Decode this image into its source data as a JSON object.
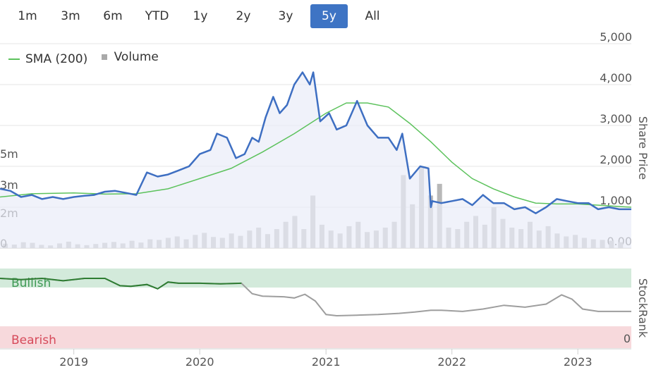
{
  "range_selector": {
    "options": [
      "1m",
      "3m",
      "6m",
      "YTD",
      "1y",
      "2y",
      "3y",
      "5y",
      "All"
    ],
    "selected": "5y"
  },
  "legend": {
    "sma_label": "SMA (200)",
    "volume_label": "Volume"
  },
  "colors": {
    "price": "#3e6fc2",
    "price_fill": "#e9edf8",
    "sma": "#5cc25c",
    "volume": "#b8b8b8",
    "stockrank_bullish": "#2e7d32",
    "stockrank_neutral": "#9e9e9e",
    "bullish_band": "#d3eadb",
    "bearish_band": "#f7d9dc",
    "bullish_text": "#3f9a55",
    "bearish_text": "#d64a5a",
    "active_button": "#3e74c4"
  },
  "chart_data": [
    {
      "type": "line",
      "ylabel": "Share Price",
      "ylim": [
        0,
        5000
      ],
      "y_ticks": [
        "5,000",
        "4,000",
        "3,000",
        "2,000",
        "1,000",
        "0.00"
      ],
      "x_ticks": [
        "2019",
        "2020",
        "2021",
        "2022",
        "2023"
      ],
      "xlim": [
        "2018-06-01",
        "2023-06-05"
      ],
      "series": [
        {
          "name": "Price",
          "dates": [
            "2018-06-01",
            "2018-07-01",
            "2018-08-01",
            "2018-09-01",
            "2018-10-01",
            "2018-11-01",
            "2018-12-01",
            "2019-01-01",
            "2019-02-01",
            "2019-03-01",
            "2019-04-01",
            "2019-05-01",
            "2019-06-01",
            "2019-07-01",
            "2019-08-01",
            "2019-09-01",
            "2019-10-01",
            "2019-11-01",
            "2019-12-01",
            "2020-01-01",
            "2020-02-01",
            "2020-02-20",
            "2020-03-20",
            "2020-04-15",
            "2020-05-10",
            "2020-06-01",
            "2020-06-20",
            "2020-07-10",
            "2020-08-01",
            "2020-08-20",
            "2020-09-10",
            "2020-10-01",
            "2020-10-25",
            "2020-11-15",
            "2020-11-25",
            "2020-12-15",
            "2021-01-10",
            "2021-02-01",
            "2021-03-01",
            "2021-04-01",
            "2021-05-01",
            "2021-06-01",
            "2021-07-01",
            "2021-07-25",
            "2021-08-10",
            "2021-09-01",
            "2021-10-01",
            "2021-10-25",
            "2021-11-01",
            "2021-11-05",
            "2021-12-01",
            "2022-01-01",
            "2022-02-01",
            "2022-03-01",
            "2022-04-01",
            "2022-05-01",
            "2022-06-01",
            "2022-07-01",
            "2022-08-01",
            "2022-09-01",
            "2022-10-01",
            "2022-11-01",
            "2022-12-01",
            "2023-01-01",
            "2023-02-01",
            "2023-03-01",
            "2023-04-01",
            "2023-05-01",
            "2023-06-05"
          ],
          "values": [
            1450,
            1400,
            1250,
            1300,
            1200,
            1250,
            1200,
            1250,
            1280,
            1300,
            1380,
            1400,
            1350,
            1300,
            1850,
            1750,
            1800,
            1900,
            2000,
            2300,
            2400,
            2800,
            2700,
            2200,
            2300,
            2700,
            2600,
            3200,
            3700,
            3300,
            3500,
            4000,
            4300,
            4000,
            4300,
            3100,
            3300,
            2900,
            3000,
            3600,
            3000,
            2700,
            2700,
            2400,
            2800,
            1700,
            2000,
            1950,
            1000,
            1150,
            1100,
            1150,
            1200,
            1050,
            1300,
            1100,
            1100,
            950,
            1000,
            850,
            1000,
            1200,
            1150,
            1100,
            1100,
            950,
            1000,
            950,
            950
          ]
        },
        {
          "name": "SMA (200)",
          "dates": [
            "2018-06-01",
            "2018-09-01",
            "2019-01-01",
            "2019-04-01",
            "2019-07-01",
            "2019-10-01",
            "2020-01-01",
            "2020-04-01",
            "2020-07-01",
            "2020-10-01",
            "2021-01-01",
            "2021-03-01",
            "2021-05-01",
            "2021-07-01",
            "2021-09-01",
            "2021-11-01",
            "2022-01-01",
            "2022-03-01",
            "2022-05-01",
            "2022-07-01",
            "2022-09-01",
            "2022-11-01",
            "2023-01-01",
            "2023-03-01",
            "2023-06-05"
          ],
          "values": [
            1250,
            1330,
            1350,
            1320,
            1330,
            1450,
            1700,
            1950,
            2350,
            2800,
            3300,
            3550,
            3550,
            3450,
            3050,
            2600,
            2100,
            1700,
            1450,
            1250,
            1100,
            1080,
            1080,
            1050,
            1000
          ]
        },
        {
          "name": "Volume",
          "unit_ticks": [
            "5m",
            "3m",
            "2m",
            "0"
          ],
          "ylim": [
            0,
            7000000
          ],
          "values": [
            150000,
            120000,
            200000,
            180000,
            110000,
            90000,
            160000,
            220000,
            130000,
            100000,
            140000,
            180000,
            210000,
            160000,
            250000,
            190000,
            300000,
            280000,
            350000,
            400000,
            300000,
            450000,
            520000,
            380000,
            350000,
            500000,
            420000,
            600000,
            700000,
            480000,
            650000,
            900000,
            1100000,
            650000,
            1800000,
            800000,
            600000,
            500000,
            750000,
            900000,
            550000,
            600000,
            700000,
            900000,
            2500000,
            1500000,
            2800000,
            1800000,
            2200000,
            700000,
            650000,
            900000,
            1100000,
            800000,
            1400000,
            1000000,
            700000,
            650000,
            900000,
            600000,
            750000,
            500000,
            400000,
            450000,
            350000,
            300000,
            280000,
            250000,
            200000
          ]
        }
      ]
    },
    {
      "type": "line",
      "ylabel": "StockRank",
      "ylim": [
        0,
        100
      ],
      "y_ticks": [
        "0"
      ],
      "band_labels": [
        "Bullish",
        "Bearish"
      ],
      "series": [
        {
          "name": "StockRank",
          "dates": [
            "2018-06-01",
            "2018-08-01",
            "2018-10-01",
            "2018-12-01",
            "2019-02-01",
            "2019-04-01",
            "2019-05-15",
            "2019-06-15",
            "2019-08-01",
            "2019-09-01",
            "2019-10-01",
            "2019-11-01",
            "2020-01-01",
            "2020-03-01",
            "2020-05-01",
            "2020-06-01",
            "2020-07-01",
            "2020-09-01",
            "2020-10-01",
            "2020-11-01",
            "2020-12-01",
            "2021-01-01",
            "2021-02-01",
            "2021-04-01",
            "2021-06-01",
            "2021-08-01",
            "2021-09-15",
            "2021-11-01",
            "2021-12-01",
            "2022-02-01",
            "2022-04-01",
            "2022-06-01",
            "2022-08-01",
            "2022-10-01",
            "2022-11-15",
            "2022-12-15",
            "2023-01-15",
            "2023-03-01",
            "2023-06-05"
          ],
          "values": [
            92,
            90,
            92,
            88,
            92,
            92,
            80,
            79,
            82,
            75,
            86,
            84,
            84,
            83,
            84,
            67,
            63,
            62,
            60,
            66,
            55,
            33,
            31,
            32,
            33,
            35,
            37,
            40,
            40,
            38,
            42,
            48,
            45,
            50,
            65,
            58,
            42,
            38,
            38
          ]
        }
      ]
    }
  ]
}
